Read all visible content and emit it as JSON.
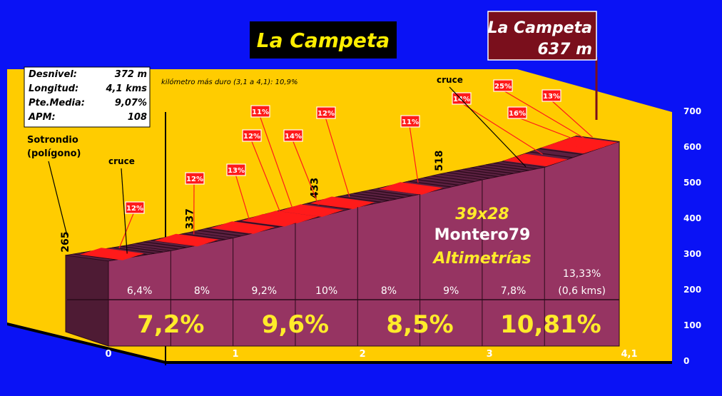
{
  "chart_data": {
    "type": "area",
    "title": "La Campeta",
    "summit": {
      "name": "La Campeta",
      "altitude": "637 m"
    },
    "stats": [
      {
        "label": "Desnivel:",
        "value": "372 m"
      },
      {
        "label": "Longitud:",
        "value": "4,1 kms"
      },
      {
        "label": "Pte.Media:",
        "value": "9,07%"
      },
      {
        "label": "APM:",
        "value": "108"
      }
    ],
    "note": "kilómetro más duro (3,1 a 4,1): 10,9%",
    "start_label": [
      "Sotrondio",
      "(polígono)"
    ],
    "x_ticks": [
      "0",
      "1",
      "2",
      "3",
      "4,1"
    ],
    "x_tick_values": [
      0,
      1,
      2,
      3,
      4.1
    ],
    "y_ticks": [
      "0",
      "100",
      "200",
      "300",
      "400",
      "500",
      "600",
      "700"
    ],
    "ylim": [
      0,
      700
    ],
    "xlim": [
      0,
      4.1
    ],
    "profile": [
      {
        "km": 0,
        "alt": 265
      },
      {
        "km": 0.5,
        "alt": 297
      },
      {
        "km": 1,
        "alt": 337
      },
      {
        "km": 1.5,
        "alt": 383
      },
      {
        "km": 2,
        "alt": 433
      },
      {
        "km": 2.5,
        "alt": 473
      },
      {
        "km": 3,
        "alt": 518
      },
      {
        "km": 3.5,
        "alt": 557
      },
      {
        "km": 4.1,
        "alt": 637
      }
    ],
    "altitude_labels": [
      {
        "km": 0,
        "text": "265"
      },
      {
        "km": 1,
        "text": "337"
      },
      {
        "km": 2,
        "text": "433"
      },
      {
        "km": 3,
        "text": "518"
      }
    ],
    "segment_gradients": [
      "6,4%",
      "8%",
      "9,2%",
      "10%",
      "8%",
      "9%",
      "7,8%",
      "13,33%"
    ],
    "last_segment_note": "(0,6 kms)",
    "km_gradients": [
      "7,2%",
      "9,6%",
      "8,5%",
      "10,81%"
    ],
    "ramps": [
      {
        "label": "12%",
        "km": 0.2
      },
      {
        "label": "12%",
        "km": 0.8
      },
      {
        "label": "13%",
        "km": 1.25
      },
      {
        "label": "12%",
        "km": 1.5
      },
      {
        "label": "11%",
        "km": 1.6
      },
      {
        "label": "14%",
        "km": 1.8
      },
      {
        "label": "12%",
        "km": 2.05
      },
      {
        "label": "11%",
        "km": 2.6
      },
      {
        "label": "14%",
        "km": 3.6
      },
      {
        "label": "16%",
        "km": 3.9
      },
      {
        "label": "25%",
        "km": 3.95
      },
      {
        "label": "13%",
        "km": 4.0
      }
    ],
    "crossroads": [
      {
        "label": "cruce",
        "km": 0.15
      },
      {
        "label": "cruce",
        "km": 3.35
      }
    ],
    "watermark": [
      "39x28",
      "Montero79",
      "Altimetrías"
    ],
    "colors": {
      "background": "#0a12f5",
      "panel": "#ffcc00",
      "profile_face": "#963462",
      "profile_dark": "#4e1b34",
      "ramp": "#ff1a1a",
      "summit_box": "#7a0f1c",
      "km_text": "#ffeb2a"
    }
  }
}
